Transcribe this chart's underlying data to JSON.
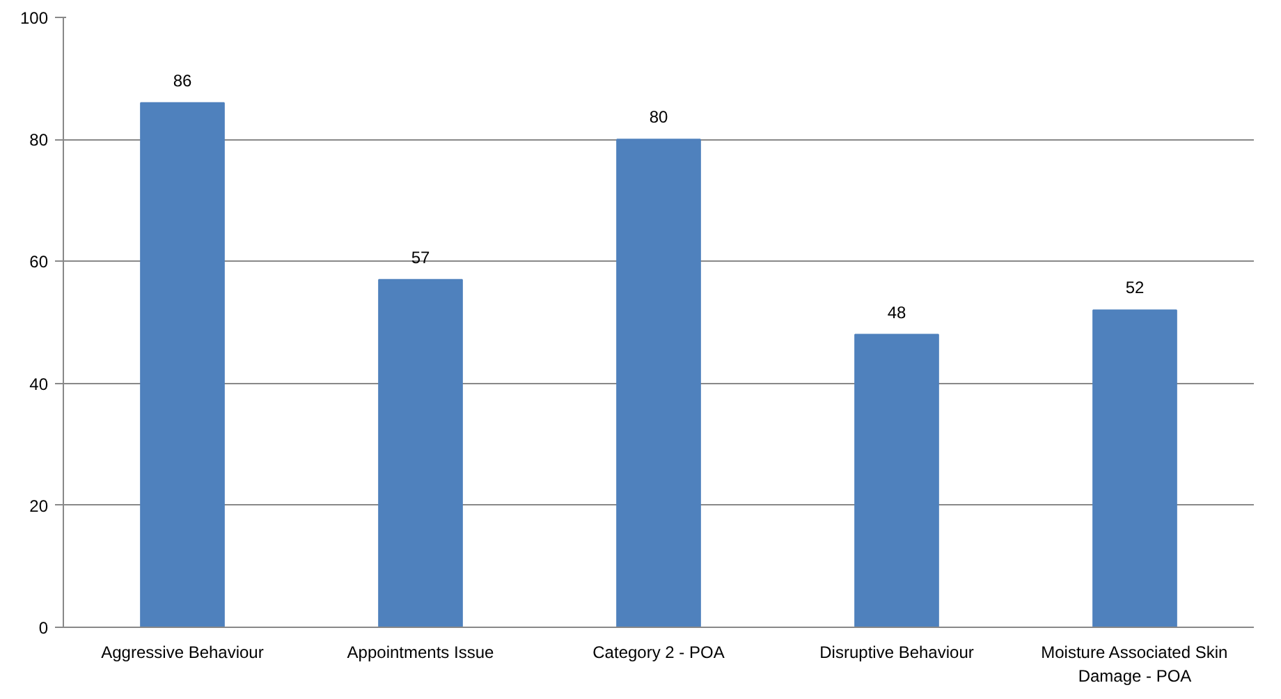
{
  "chart_data": {
    "type": "bar",
    "categories": [
      "Aggressive Behaviour",
      "Appointments Issue",
      "Category 2 - POA",
      "Disruptive Behaviour",
      "Moisture Associated Skin Damage - POA"
    ],
    "values": [
      86,
      57,
      80,
      48,
      52
    ],
    "color": "#4f81bd",
    "ylim": [
      0,
      100
    ],
    "yticks": [
      0,
      20,
      40,
      60,
      80,
      100
    ],
    "grid": "y",
    "data_labels": true
  }
}
